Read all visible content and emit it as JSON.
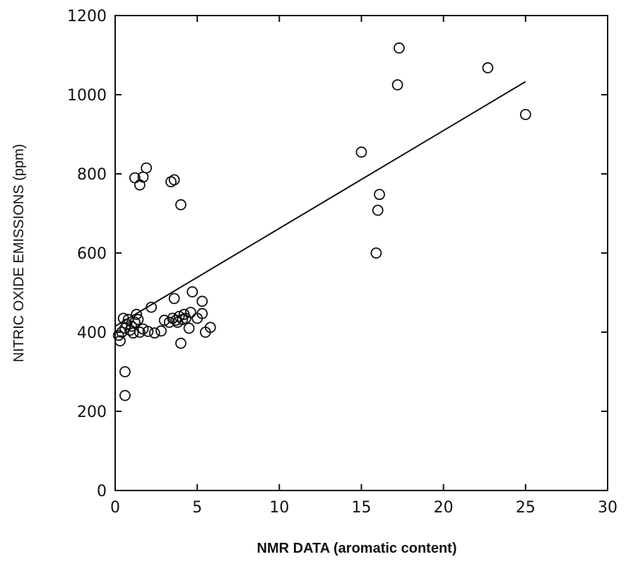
{
  "chart_data": {
    "type": "scatter",
    "title": "",
    "xlabel": "NMR DATA (aromatic content)",
    "ylabel": "NITRIC OXIDE EMISSIONS (ppm)",
    "xlim": [
      0,
      30
    ],
    "ylim": [
      0,
      1200
    ],
    "x_ticks": [
      "0",
      "5",
      "10",
      "15",
      "20",
      "25",
      "30"
    ],
    "y_ticks": [
      "0",
      "200",
      "400",
      "600",
      "800",
      "1000",
      "1200"
    ],
    "grid": false,
    "legend": "none",
    "marker": "open-circle",
    "points": [
      [
        0.2,
        392
      ],
      [
        0.3,
        378
      ],
      [
        0.4,
        400
      ],
      [
        0.5,
        435
      ],
      [
        0.6,
        410
      ],
      [
        0.7,
        420
      ],
      [
        0.8,
        432
      ],
      [
        0.9,
        405
      ],
      [
        1.0,
        415
      ],
      [
        1.1,
        398
      ],
      [
        1.2,
        425
      ],
      [
        1.3,
        445
      ],
      [
        1.4,
        432
      ],
      [
        1.5,
        400
      ],
      [
        1.7,
        408
      ],
      [
        2.0,
        402
      ],
      [
        2.2,
        463
      ],
      [
        2.4,
        398
      ],
      [
        2.8,
        403
      ],
      [
        3.0,
        430
      ],
      [
        3.3,
        425
      ],
      [
        3.5,
        435
      ],
      [
        3.6,
        485
      ],
      [
        3.7,
        430
      ],
      [
        3.8,
        425
      ],
      [
        3.9,
        440
      ],
      [
        4.0,
        372
      ],
      [
        4.1,
        432
      ],
      [
        4.2,
        445
      ],
      [
        4.3,
        435
      ],
      [
        4.5,
        410
      ],
      [
        4.6,
        450
      ],
      [
        4.7,
        502
      ],
      [
        5.0,
        435
      ],
      [
        5.3,
        478
      ],
      [
        5.3,
        447
      ],
      [
        5.5,
        400
      ],
      [
        5.8,
        412
      ],
      [
        0.6,
        300
      ],
      [
        0.6,
        240
      ],
      [
        1.2,
        790
      ],
      [
        1.5,
        772
      ],
      [
        1.7,
        792
      ],
      [
        1.9,
        815
      ],
      [
        3.4,
        780
      ],
      [
        3.6,
        785
      ],
      [
        4.0,
        722
      ],
      [
        15.0,
        855
      ],
      [
        15.9,
        600
      ],
      [
        16.0,
        708
      ],
      [
        16.1,
        748
      ],
      [
        17.2,
        1025
      ],
      [
        17.3,
        1118
      ],
      [
        22.7,
        1068
      ],
      [
        25.0,
        950
      ]
    ],
    "fit_line": {
      "x": [
        0,
        25
      ],
      "y": [
        415,
        1033
      ]
    }
  }
}
